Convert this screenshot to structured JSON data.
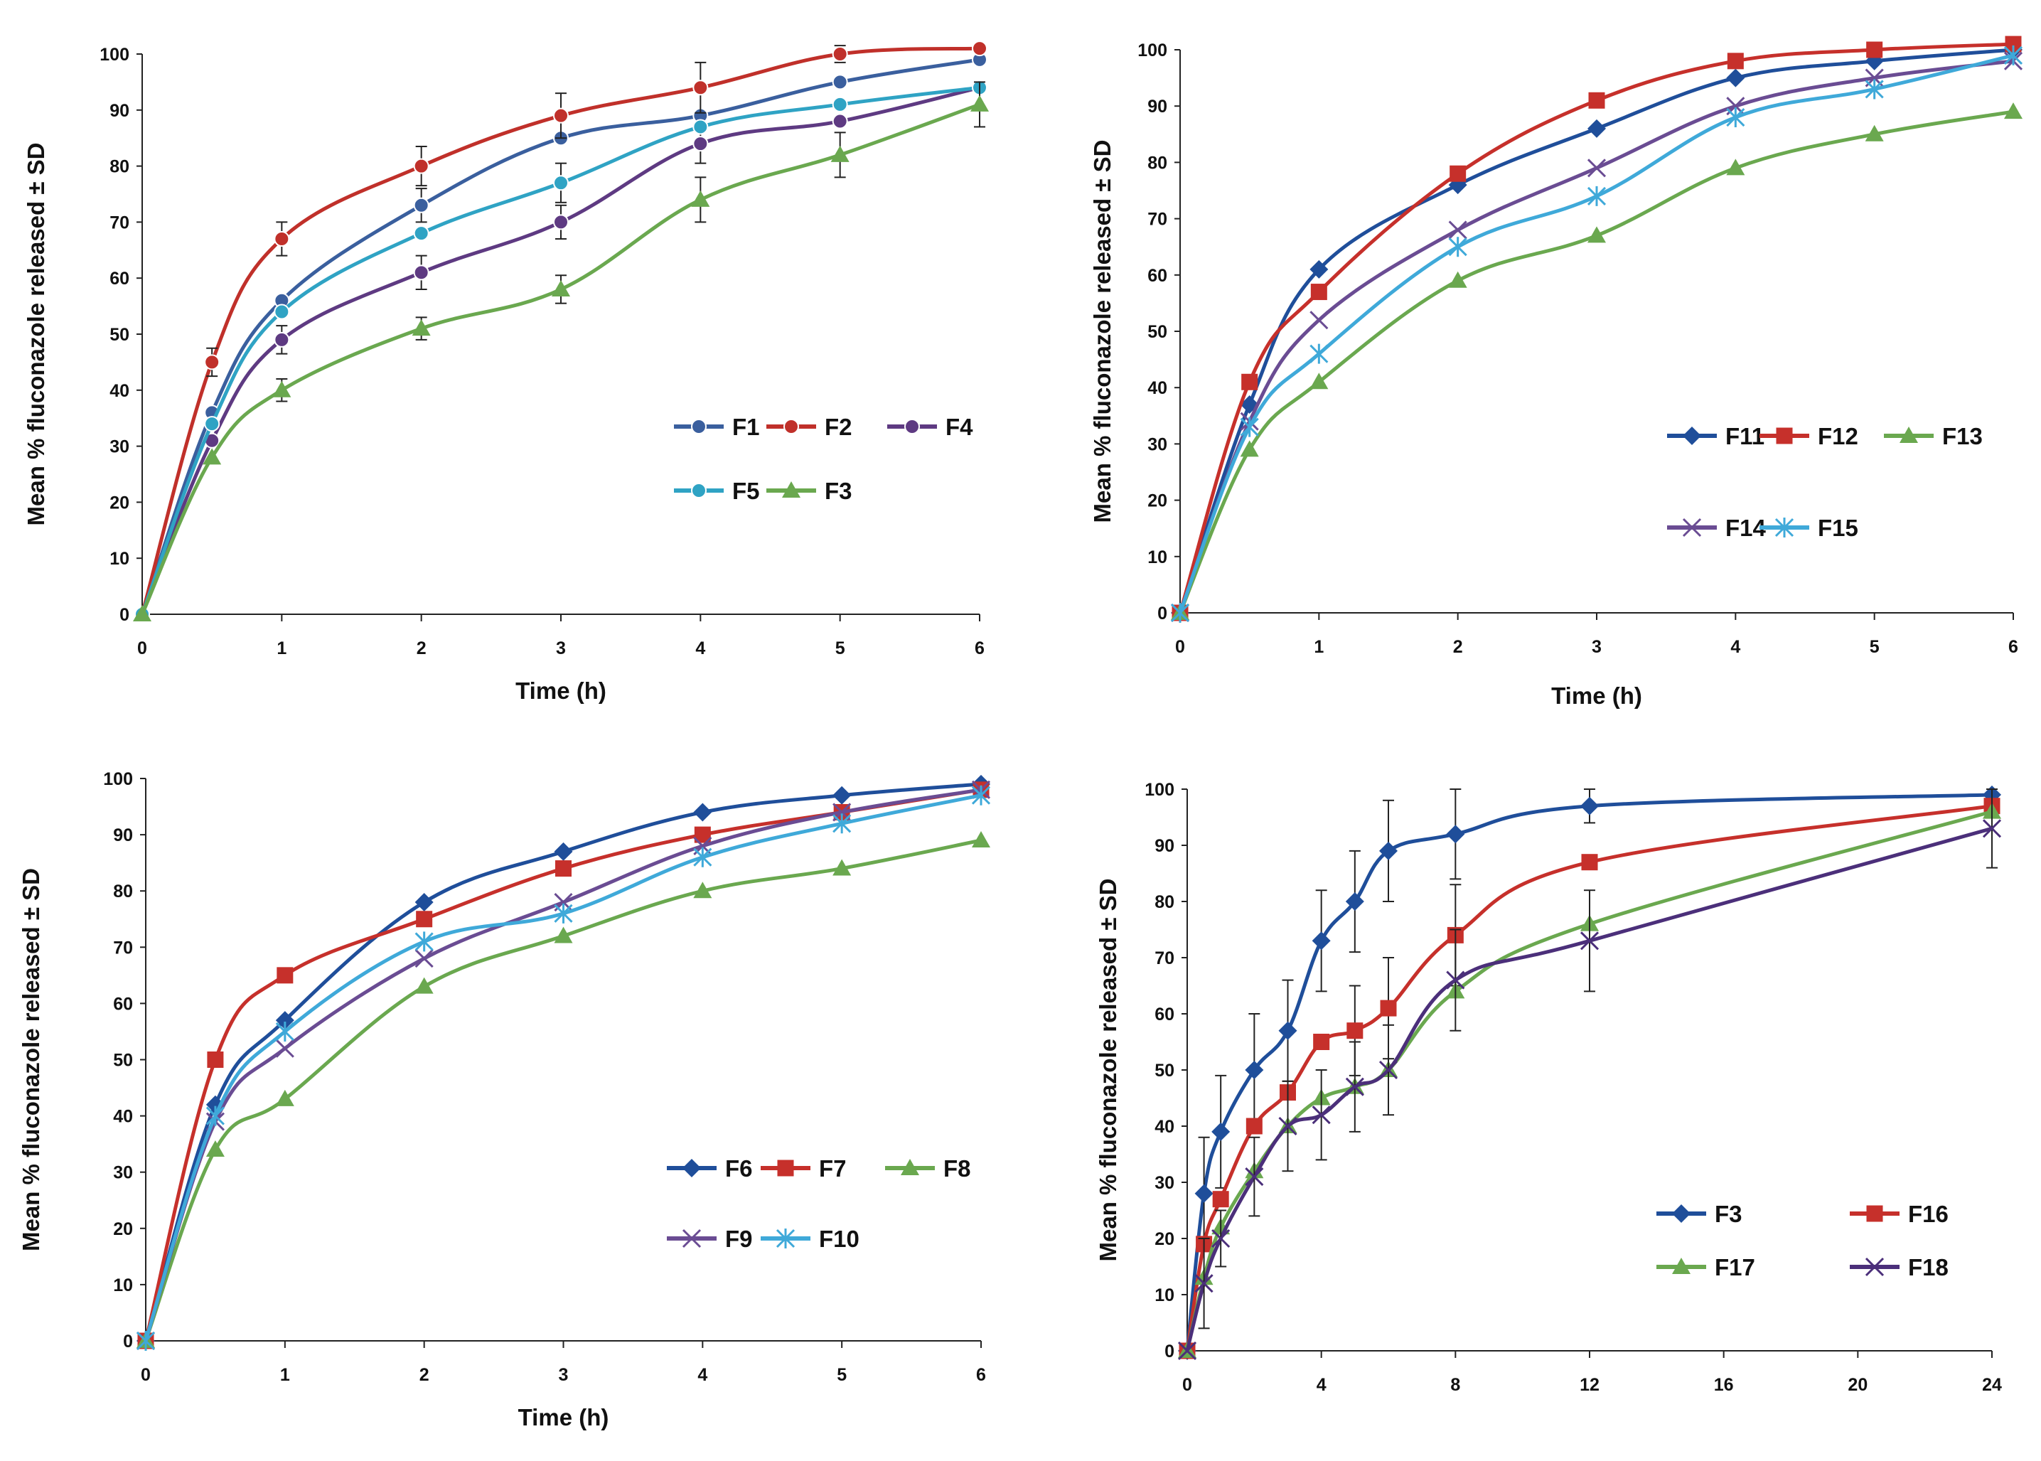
{
  "chart_data": [
    {
      "type": "line",
      "title": "",
      "xlabel": "Time (h)",
      "ylabel": "Mean % fluconazole released ± SD",
      "xlim": [
        0,
        6
      ],
      "ylim": [
        0,
        100
      ],
      "xticks": [
        0,
        1,
        2,
        3,
        4,
        5,
        6
      ],
      "yticks": [
        0,
        10,
        20,
        30,
        40,
        50,
        60,
        70,
        80,
        90,
        100
      ],
      "legend_position": "right-middle",
      "error_bars": true,
      "series": [
        {
          "name": "F1",
          "color": "#3a5f9e",
          "marker": "circle",
          "x": [
            0,
            0.5,
            1,
            2,
            3,
            4,
            5,
            6
          ],
          "y": [
            0,
            36,
            56,
            73,
            85,
            89,
            95,
            99
          ],
          "err": [
            0,
            0,
            0,
            3,
            0,
            0,
            0,
            0
          ]
        },
        {
          "name": "F2",
          "color": "#c0302a",
          "marker": "circle",
          "x": [
            0,
            0.5,
            1,
            2,
            3,
            4,
            5,
            6
          ],
          "y": [
            0,
            45,
            67,
            80,
            89,
            94,
            100,
            101
          ],
          "err": [
            0,
            2.5,
            3,
            3.5,
            4,
            4.5,
            1.5,
            0.5
          ]
        },
        {
          "name": "F4",
          "color": "#5e3a82",
          "marker": "circle",
          "x": [
            0,
            0.5,
            1,
            2,
            3,
            4,
            5,
            6
          ],
          "y": [
            0,
            31,
            49,
            61,
            70,
            84,
            88,
            94
          ],
          "err": [
            0,
            0,
            2.5,
            3,
            3,
            3.5,
            0,
            0
          ]
        },
        {
          "name": "F5",
          "color": "#2fa3c4",
          "marker": "circle",
          "x": [
            0,
            0.5,
            1,
            2,
            3,
            4,
            5,
            6
          ],
          "y": [
            0,
            34,
            54,
            68,
            77,
            87,
            91,
            94
          ],
          "err": [
            0,
            0,
            0,
            0,
            3.5,
            0,
            0,
            0
          ]
        },
        {
          "name": "F3",
          "color": "#6aa84f",
          "marker": "triangle",
          "x": [
            0,
            0.5,
            1,
            2,
            3,
            4,
            5,
            6
          ],
          "y": [
            0,
            28,
            40,
            51,
            58,
            74,
            82,
            91
          ],
          "err": [
            0,
            0,
            2,
            2,
            2.5,
            4,
            4,
            4
          ]
        }
      ],
      "legend_rows": [
        [
          "F1",
          "F2",
          "F4"
        ],
        [
          "F5",
          "F3"
        ]
      ]
    },
    {
      "type": "line",
      "title": "",
      "xlabel": "Time (h)",
      "ylabel": "Mean % fluconazole released ± SD",
      "xlim": [
        0,
        6
      ],
      "ylim": [
        0,
        100
      ],
      "xticks": [
        0,
        1,
        2,
        3,
        4,
        5,
        6
      ],
      "yticks": [
        0,
        10,
        20,
        30,
        40,
        50,
        60,
        70,
        80,
        90,
        100
      ],
      "legend_position": "right-middle",
      "error_bars": false,
      "series": [
        {
          "name": "F11",
          "color": "#1f4e9a",
          "marker": "diamond",
          "x": [
            0,
            0.5,
            1,
            2,
            3,
            4,
            5,
            6
          ],
          "y": [
            0,
            37,
            61,
            76,
            86,
            95,
            98,
            100
          ]
        },
        {
          "name": "F12",
          "color": "#c6302b",
          "marker": "square",
          "x": [
            0,
            0.5,
            1,
            2,
            3,
            4,
            5,
            6
          ],
          "y": [
            0,
            41,
            57,
            78,
            91,
            98,
            100,
            101
          ]
        },
        {
          "name": "F13",
          "color": "#6aa84f",
          "marker": "triangle",
          "x": [
            0,
            0.5,
            1,
            2,
            3,
            4,
            5,
            6
          ],
          "y": [
            0,
            29,
            41,
            59,
            67,
            79,
            85,
            89
          ]
        },
        {
          "name": "F14",
          "color": "#6a4c93",
          "marker": "x",
          "x": [
            0,
            0.5,
            1,
            2,
            3,
            4,
            5,
            6
          ],
          "y": [
            0,
            34,
            52,
            68,
            79,
            90,
            95,
            98
          ]
        },
        {
          "name": "F15",
          "color": "#3fa9d9",
          "marker": "star",
          "x": [
            0,
            0.5,
            1,
            2,
            3,
            4,
            5,
            6
          ],
          "y": [
            0,
            33,
            46,
            65,
            74,
            88,
            93,
            99
          ]
        }
      ],
      "legend_rows": [
        [
          "F11",
          "F12",
          "F13"
        ],
        [
          "F14",
          "F15"
        ]
      ]
    },
    {
      "type": "line",
      "title": "",
      "xlabel": "Time (h)",
      "ylabel": "Mean % fluconazole released ± SD",
      "xlim": [
        0,
        6
      ],
      "ylim": [
        0,
        100
      ],
      "xticks": [
        0,
        1,
        2,
        3,
        4,
        5,
        6
      ],
      "yticks": [
        0,
        10,
        20,
        30,
        40,
        50,
        60,
        70,
        80,
        90,
        100
      ],
      "legend_position": "right-bottom",
      "error_bars": false,
      "series": [
        {
          "name": "F6",
          "color": "#1f4e9a",
          "marker": "diamond",
          "x": [
            0,
            0.5,
            1,
            2,
            3,
            4,
            5,
            6
          ],
          "y": [
            0,
            42,
            57,
            78,
            87,
            94,
            97,
            99
          ]
        },
        {
          "name": "F7",
          "color": "#c6302b",
          "marker": "square",
          "x": [
            0,
            0.5,
            1,
            2,
            3,
            4,
            5,
            6
          ],
          "y": [
            0,
            50,
            65,
            75,
            84,
            90,
            94,
            98
          ]
        },
        {
          "name": "F8",
          "color": "#6aa84f",
          "marker": "triangle",
          "x": [
            0,
            0.5,
            1,
            2,
            3,
            4,
            5,
            6
          ],
          "y": [
            0,
            34,
            43,
            63,
            72,
            80,
            84,
            89
          ]
        },
        {
          "name": "F9",
          "color": "#6a4c93",
          "marker": "x",
          "x": [
            0,
            0.5,
            1,
            2,
            3,
            4,
            5,
            6
          ],
          "y": [
            0,
            39,
            52,
            68,
            78,
            88,
            94,
            98
          ]
        },
        {
          "name": "F10",
          "color": "#3fa9d9",
          "marker": "star",
          "x": [
            0,
            0.5,
            1,
            2,
            3,
            4,
            5,
            6
          ],
          "y": [
            0,
            40,
            55,
            71,
            76,
            86,
            92,
            97
          ]
        }
      ],
      "legend_rows": [
        [
          "F6",
          "F7",
          "F8"
        ],
        [
          "F9",
          "F10"
        ]
      ]
    },
    {
      "type": "line",
      "title": "",
      "xlabel": "",
      "ylabel": "Mean % fluconazole released ± SD",
      "xlim": [
        0,
        24
      ],
      "ylim": [
        0,
        100
      ],
      "xticks": [
        0,
        4,
        8,
        12,
        16,
        20,
        24
      ],
      "yticks": [
        0,
        10,
        20,
        30,
        40,
        50,
        60,
        70,
        80,
        90,
        100
      ],
      "legend_position": "right-bottom",
      "error_bars": true,
      "series": [
        {
          "name": "F3",
          "color": "#1f4e9a",
          "marker": "diamond",
          "x": [
            0,
            0.5,
            1,
            2,
            3,
            4,
            5,
            6,
            8,
            12,
            24
          ],
          "y": [
            0,
            28,
            39,
            50,
            57,
            73,
            80,
            89,
            92,
            97,
            99
          ],
          "err": [
            0,
            10,
            10,
            10,
            9,
            9,
            9,
            9,
            8,
            3,
            0
          ]
        },
        {
          "name": "F16",
          "color": "#c6302b",
          "marker": "square",
          "x": [
            0,
            0.5,
            1,
            2,
            3,
            4,
            5,
            6,
            8,
            12,
            24
          ],
          "y": [
            0,
            19,
            27,
            40,
            46,
            55,
            57,
            61,
            74,
            87,
            97
          ],
          "err": [
            0,
            0,
            0,
            0,
            0,
            0,
            8,
            9,
            9,
            0,
            0
          ]
        },
        {
          "name": "F17",
          "color": "#6aa84f",
          "marker": "triangle",
          "x": [
            0,
            0.5,
            1,
            2,
            3,
            4,
            5,
            6,
            8,
            12,
            24
          ],
          "y": [
            0,
            13,
            22,
            32,
            40,
            45,
            47,
            50,
            64,
            76,
            96
          ],
          "err": [
            0,
            0,
            0,
            0,
            0,
            0,
            0,
            0,
            0,
            0,
            0
          ]
        },
        {
          "name": "F18",
          "color": "#4b2f7a",
          "marker": "x",
          "x": [
            0,
            0.5,
            1,
            2,
            3,
            4,
            5,
            6,
            8,
            12,
            24
          ],
          "y": [
            0,
            12,
            20,
            31,
            40,
            42,
            47,
            50,
            66,
            73,
            93
          ],
          "err": [
            0,
            8,
            5,
            7,
            8,
            8,
            8,
            8,
            9,
            9,
            7
          ]
        }
      ],
      "legend_rows": [
        [
          "F3",
          "F16"
        ],
        [
          "F17",
          "F18"
        ]
      ]
    }
  ]
}
